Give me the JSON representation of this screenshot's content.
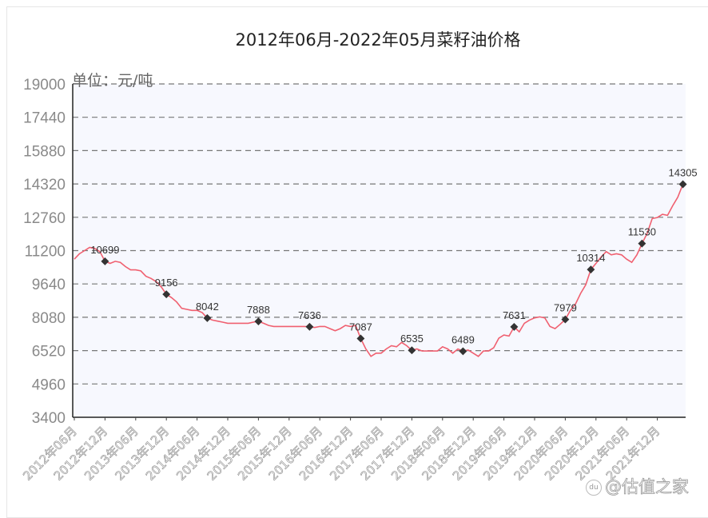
{
  "chart_data": {
    "type": "line",
    "title": "2012年06月-2022年05月菜籽油价格",
    "xlabel": "",
    "ylabel": "单位：元/吨",
    "unit_label": "单位：元/吨",
    "ylim": [
      3400,
      19000
    ],
    "yticks": [
      19000,
      17440,
      15880,
      14320,
      12760,
      11200,
      9640,
      8080,
      6520,
      4960,
      3400
    ],
    "grid": "horizontal dashed",
    "legend": "none",
    "line_color": "#f06070",
    "marker_color": "#333333",
    "plot_bg": "#f7f8fe",
    "xtick_labels": [
      "2012年06月",
      "2012年12月",
      "2013年06月",
      "2013年12月",
      "2014年06月",
      "2014年12月",
      "2015年06月",
      "2015年12月",
      "2016年06月",
      "2016年12月",
      "2017年06月",
      "2017年12月",
      "2018年06月",
      "2018年12月",
      "2019年06月",
      "2019年12月",
      "2020年06月",
      "2020年12月",
      "2021年06月",
      "2021年12月"
    ],
    "x_start": "2012-06",
    "x_end": "2022-05",
    "annotated_points": [
      {
        "month_index": 6,
        "date": "2012年12月",
        "value": 10699
      },
      {
        "month_index": 18,
        "date": "2013年12月",
        "value": 9156
      },
      {
        "month_index": 26,
        "date": "2014年08月",
        "value": 8042
      },
      {
        "month_index": 36,
        "date": "2015年06月",
        "value": 7888
      },
      {
        "month_index": 46,
        "date": "2016年04月",
        "value": 7636
      },
      {
        "month_index": 56,
        "date": "2017年02月",
        "value": 7087
      },
      {
        "month_index": 66,
        "date": "2017年12月",
        "value": 6535
      },
      {
        "month_index": 76,
        "date": "2018年10月",
        "value": 6489
      },
      {
        "month_index": 86,
        "date": "2019年08月",
        "value": 7631
      },
      {
        "month_index": 96,
        "date": "2020年06月",
        "value": 7979
      },
      {
        "month_index": 101,
        "date": "2020年11月",
        "value": 10314
      },
      {
        "month_index": 111,
        "date": "2021年09月",
        "value": 11530
      },
      {
        "month_index": 119,
        "date": "2022年05月",
        "value": 14305
      }
    ],
    "values": [
      10800,
      11050,
      11200,
      11350,
      11300,
      11150,
      10699,
      10600,
      10700,
      10650,
      10450,
      10300,
      10300,
      10250,
      10000,
      9900,
      9750,
      9500,
      9156,
      9000,
      8800,
      8500,
      8450,
      8400,
      8400,
      8300,
      8042,
      7950,
      7900,
      7850,
      7800,
      7800,
      7800,
      7800,
      7800,
      7850,
      7888,
      7800,
      7700,
      7650,
      7650,
      7650,
      7650,
      7650,
      7650,
      7650,
      7636,
      7600,
      7650,
      7650,
      7550,
      7450,
      7550,
      7700,
      7650,
      7700,
      7087,
      6600,
      6250,
      6400,
      6400,
      6600,
      6750,
      6700,
      6900,
      6750,
      6535,
      6600,
      6500,
      6500,
      6500,
      6500,
      6700,
      6600,
      6400,
      6600,
      6489,
      6550,
      6400,
      6250,
      6500,
      6500,
      6650,
      7100,
      7250,
      7200,
      7631,
      7400,
      7800,
      7950,
      8050,
      8100,
      8050,
      7650,
      7550,
      7750,
      7979,
      8400,
      8700,
      9200,
      9600,
      10314,
      10600,
      10900,
      11150,
      11000,
      11050,
      11000,
      10800,
      10650,
      11000,
      11530,
      12000,
      12700,
      12750,
      12900,
      12850,
      13300,
      13700,
      14305
    ]
  },
  "watermark": {
    "logo_text": "du",
    "text": "@估值之家"
  }
}
